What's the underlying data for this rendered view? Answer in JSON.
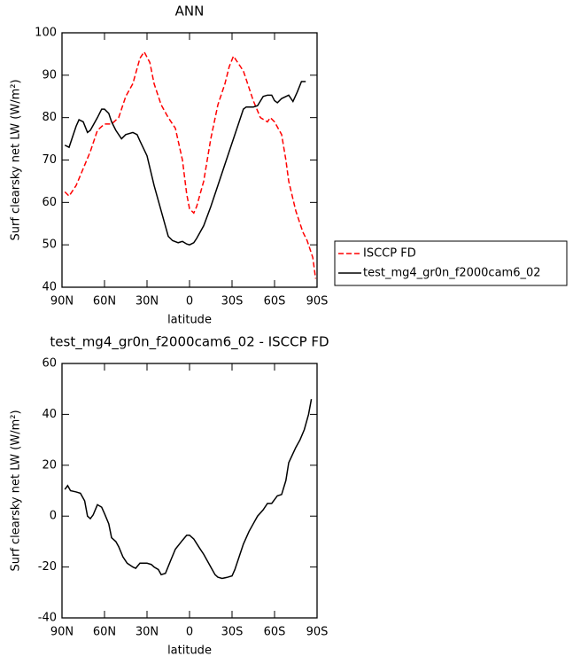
{
  "chart_data": [
    {
      "type": "line",
      "title": "ANN",
      "xlabel": "latitude",
      "ylabel": "Surf clearsky net LW (W/m²)",
      "xlim": [
        90,
        -90
      ],
      "xticks": [
        {
          "value": 90,
          "label": "90N"
        },
        {
          "value": 60,
          "label": "60N"
        },
        {
          "value": 30,
          "label": "30N"
        },
        0,
        {
          "value": -30,
          "label": "30S"
        },
        {
          "value": -60,
          "label": "60S"
        },
        {
          "value": -90,
          "label": "90S"
        }
      ],
      "ylim": [
        40,
        100
      ],
      "yticks": [
        40,
        50,
        60,
        70,
        80,
        90,
        100
      ],
      "legend": "right",
      "series": [
        {
          "name": "ISCCP FD",
          "color": "#ff0000",
          "dash": true,
          "x": [
            88,
            85,
            80,
            75,
            70,
            65,
            60,
            55,
            50,
            45,
            40,
            35,
            32,
            28,
            25,
            20,
            15,
            10,
            5,
            2,
            0,
            -3,
            -5,
            -10,
            -15,
            -20,
            -25,
            -28,
            -31,
            -34,
            -38,
            -42,
            -45,
            -50,
            -55,
            -57,
            -60,
            -65,
            -68,
            -70,
            -75,
            -80,
            -83,
            -87,
            -89
          ],
          "values": [
            62.5,
            61.5,
            64,
            68,
            72,
            77,
            78.5,
            78.5,
            80,
            85,
            88,
            94,
            95.5,
            93,
            88,
            83,
            80,
            77.5,
            70,
            62,
            58.5,
            57.5,
            59,
            65,
            75,
            83,
            88,
            92,
            94.5,
            93,
            91,
            87,
            84,
            80,
            79,
            80,
            79,
            76,
            70,
            65,
            58,
            53,
            51,
            47,
            42
          ]
        },
        {
          "name": "test_mg4_gr0n_f2000cam6_02",
          "color": "#000000",
          "dash": false,
          "x": [
            88,
            85,
            82,
            80,
            78,
            75,
            72,
            70,
            65,
            62,
            60,
            57,
            55,
            52,
            48,
            45,
            40,
            37,
            35,
            30,
            25,
            20,
            15,
            12,
            8,
            5,
            2,
            0,
            -3,
            -5,
            -10,
            -15,
            -20,
            -25,
            -30,
            -35,
            -38,
            -40,
            -45,
            -48,
            -52,
            -55,
            -58,
            -60,
            -62,
            -65,
            -70,
            -73,
            -76,
            -79,
            -82
          ],
          "values": [
            73.5,
            73,
            76,
            78,
            79.5,
            79,
            76.5,
            77,
            80,
            82,
            82,
            81,
            79,
            77,
            75,
            76,
            76.5,
            76,
            74.5,
            71,
            64,
            58,
            52,
            51,
            50.5,
            50.8,
            50.2,
            50,
            50.5,
            51.5,
            54.5,
            59,
            64,
            69,
            74,
            79,
            82,
            82.5,
            82.5,
            82.8,
            85,
            85.3,
            85.3,
            84,
            83.5,
            84.5,
            85.3,
            83.8,
            86,
            88.5,
            88.5
          ]
        }
      ]
    },
    {
      "type": "line",
      "title": "test_mg4_gr0n_f2000cam6_02 - ISCCP FD",
      "xlabel": "latitude",
      "ylabel": "Surf clearsky net LW (W/m²)",
      "xlim": [
        90,
        -90
      ],
      "xticks": [
        {
          "value": 90,
          "label": "90N"
        },
        {
          "value": 60,
          "label": "60N"
        },
        {
          "value": 30,
          "label": "30N"
        },
        0,
        {
          "value": -30,
          "label": "30S"
        },
        {
          "value": -60,
          "label": "60S"
        },
        {
          "value": -90,
          "label": "90S"
        }
      ],
      "ylim": [
        -40,
        60
      ],
      "yticks": [
        -40,
        -20,
        0,
        20,
        40,
        60
      ],
      "series": [
        {
          "color": "#000000",
          "dash": false,
          "x": [
            88,
            86,
            84,
            80,
            77,
            74,
            72,
            70,
            68,
            65,
            62,
            60,
            57,
            55,
            52,
            50,
            47,
            44,
            40,
            38,
            35,
            30,
            27,
            25,
            22,
            20,
            17,
            13,
            10,
            5,
            2,
            0,
            -3,
            -7,
            -10,
            -15,
            -18,
            -20,
            -23,
            -27,
            -30,
            -32,
            -35,
            -38,
            -42,
            -45,
            -48,
            -52,
            -55,
            -58,
            -60,
            -62,
            -65,
            -68,
            -70,
            -75,
            -78,
            -81,
            -84,
            -86
          ],
          "values": [
            10.5,
            12,
            10,
            9.5,
            9,
            6,
            0,
            -1,
            0.5,
            4.5,
            3.5,
            1,
            -3,
            -8.5,
            -10,
            -12,
            -16,
            -18.5,
            -20,
            -20.5,
            -18.5,
            -18.5,
            -19,
            -20,
            -21,
            -23,
            -22.5,
            -17,
            -13,
            -9.5,
            -7.5,
            -7.5,
            -9,
            -12.5,
            -15,
            -20,
            -23,
            -24,
            -24.5,
            -24,
            -23.5,
            -21,
            -16,
            -11,
            -6,
            -3,
            0,
            2.5,
            5,
            5,
            6.5,
            8,
            8.5,
            14,
            21,
            27,
            30,
            34,
            40,
            46
          ]
        }
      ]
    }
  ]
}
